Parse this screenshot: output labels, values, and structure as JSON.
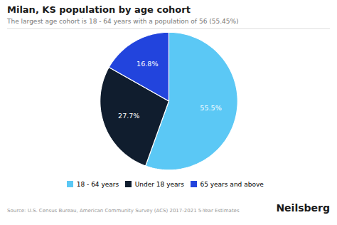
{
  "chart_data": {
    "type": "pie",
    "title": "Milan, KS population by age cohort",
    "subtitle": "The largest age cohort is 18 - 64 years with a population of 56 (55.45%)",
    "categories": [
      "18 - 64 years",
      "Under 18 years",
      "65 years and above"
    ],
    "values": [
      55.5,
      27.7,
      16.8
    ],
    "value_labels": [
      "55.5%",
      "27.7%",
      "16.8%"
    ],
    "colors": [
      "#5bc8f5",
      "#101d2e",
      "#2244dd"
    ],
    "data_labels": true,
    "legend": "bottom",
    "annotations": [
      "Source: U.S. Census Bureau, American Community Survey (ACS) 2017-2021 5-Year Estimates",
      "Neilsberg"
    ]
  }
}
